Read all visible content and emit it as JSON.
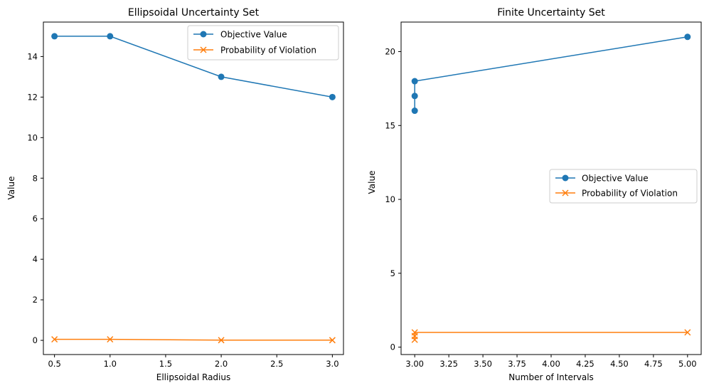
{
  "chart_data": [
    {
      "type": "line",
      "title": "Ellipsoidal Uncertainty Set",
      "xlabel": "Ellipsoidal Radius",
      "ylabel": "Value",
      "xlim": [
        0.4,
        3.1
      ],
      "ylim": [
        -0.7,
        15.7
      ],
      "xticks": [
        0.5,
        1.0,
        1.5,
        2.0,
        2.5,
        3.0
      ],
      "xtick_labels": [
        "0.5",
        "1.0",
        "1.5",
        "2.0",
        "2.5",
        "3.0"
      ],
      "yticks": [
        0,
        2,
        4,
        6,
        8,
        10,
        12,
        14
      ],
      "ytick_labels": [
        "0",
        "2",
        "4",
        "6",
        "8",
        "10",
        "12",
        "14"
      ],
      "grid": false,
      "legend_position": "top-right",
      "series": [
        {
          "name": "Objective Value",
          "marker": "circle",
          "color": "#1f77b4",
          "x": [
            0.5,
            1.0,
            2.0,
            3.0
          ],
          "y": [
            15,
            15,
            13,
            12
          ]
        },
        {
          "name": "Probability of Violation",
          "marker": "x",
          "color": "#ff7f0e",
          "x": [
            0.5,
            1.0,
            2.0,
            3.0
          ],
          "y": [
            0.05,
            0.05,
            0.01,
            0.01
          ]
        }
      ]
    },
    {
      "type": "line",
      "title": "Finite Uncertainty Set",
      "xlabel": "Number of Intervals",
      "ylabel": "Value",
      "xlim": [
        2.9,
        5.1
      ],
      "ylim": [
        -0.5,
        22.0
      ],
      "xticks": [
        3.0,
        3.25,
        3.5,
        3.75,
        4.0,
        4.25,
        4.5,
        4.75,
        5.0
      ],
      "xtick_labels": [
        "3.00",
        "3.25",
        "3.50",
        "3.75",
        "4.00",
        "4.25",
        "4.50",
        "4.75",
        "5.00"
      ],
      "yticks": [
        0,
        5,
        10,
        15,
        20
      ],
      "ytick_labels": [
        "0",
        "5",
        "10",
        "15",
        "20"
      ],
      "grid": false,
      "legend_position": "center-right",
      "series": [
        {
          "name": "Objective Value",
          "marker": "circle",
          "color": "#1f77b4",
          "x": [
            3,
            3,
            3,
            5
          ],
          "y": [
            16,
            17,
            18,
            21
          ]
        },
        {
          "name": "Probability of Violation",
          "marker": "x",
          "color": "#ff7f0e",
          "x": [
            3,
            3,
            3,
            5
          ],
          "y": [
            0.5,
            0.75,
            1.0,
            1.0
          ]
        }
      ]
    }
  ]
}
